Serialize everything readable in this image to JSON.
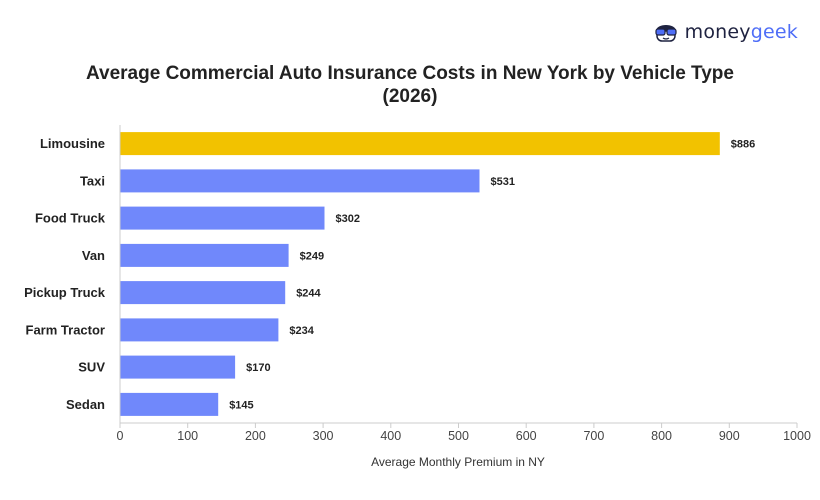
{
  "brand": {
    "name_part1": "money",
    "name_part2": "geek",
    "icon": "moneygeek-glasses-face-icon"
  },
  "colors": {
    "highlight": "#f2c200",
    "bar": "#7088fb",
    "axis": "#cccccc"
  },
  "chart_data": {
    "type": "bar",
    "orientation": "horizontal",
    "title": "Average Commercial Auto Insurance Costs in New York by Vehicle Type (2026)",
    "xlabel": "Average Monthly Premium in NY",
    "ylabel": "",
    "categories": [
      "Limousine",
      "Taxi",
      "Food Truck",
      "Van",
      "Pickup Truck",
      "Farm Tractor",
      "SUV",
      "Sedan"
    ],
    "values": [
      886,
      531,
      302,
      249,
      244,
      234,
      170,
      145
    ],
    "value_labels": [
      "$886",
      "$531",
      "$302",
      "$249",
      "$244",
      "$234",
      "$170",
      "$145"
    ],
    "highlight_index": 0,
    "xlim": [
      0,
      1000
    ],
    "xticks": [
      0,
      100,
      200,
      300,
      400,
      500,
      600,
      700,
      800,
      900,
      1000
    ],
    "grid": false,
    "legend": "none"
  }
}
